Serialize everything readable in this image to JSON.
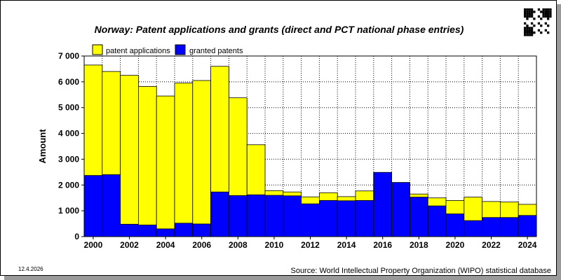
{
  "chart_data": {
    "type": "bar",
    "title": "Norway: Patent applications and grants (direct and PCT national phase entries)",
    "xlabel": "",
    "ylabel": "Amount",
    "ylim": [
      0,
      7000
    ],
    "yticks": [
      0,
      1000,
      2000,
      3000,
      4000,
      5000,
      6000,
      7000
    ],
    "ytick_labels": [
      "0",
      "1 000",
      "2 000",
      "3 000",
      "4 000",
      "5 000",
      "6 000",
      "7 000"
    ],
    "grid": true,
    "legend_position": "top-left",
    "categories": [
      2000,
      2001,
      2002,
      2003,
      2004,
      2005,
      2006,
      2007,
      2008,
      2009,
      2010,
      2011,
      2012,
      2013,
      2014,
      2015,
      2016,
      2017,
      2018,
      2019,
      2020,
      2021,
      2022,
      2023,
      2024
    ],
    "xtick_labels": [
      "2000",
      "2002",
      "2004",
      "2006",
      "2008",
      "2010",
      "2012",
      "2014",
      "2016",
      "2018",
      "2020",
      "2022",
      "2024"
    ],
    "series": [
      {
        "name": "patent applications",
        "color": "#ffff00",
        "values": [
          6650,
          6400,
          6250,
          5820,
          5450,
          5950,
          6050,
          6600,
          5380,
          3560,
          1780,
          1730,
          1540,
          1700,
          1550,
          1770,
          2430,
          2070,
          1650,
          1500,
          1400,
          1530,
          1360,
          1340,
          1250
        ]
      },
      {
        "name": "granted patents",
        "color": "#0000ff",
        "values": [
          2370,
          2400,
          480,
          450,
          300,
          520,
          490,
          1730,
          1590,
          1620,
          1600,
          1580,
          1270,
          1400,
          1390,
          1400,
          2490,
          2100,
          1530,
          1190,
          880,
          620,
          740,
          740,
          820
        ]
      }
    ],
    "source": "Source: World Intellectual Property Organization (WIPO) statistical database",
    "date": "12.4.2026"
  },
  "colors": {
    "applications": "#ffff00",
    "granted": "#0000ff",
    "frame": "#000000"
  }
}
